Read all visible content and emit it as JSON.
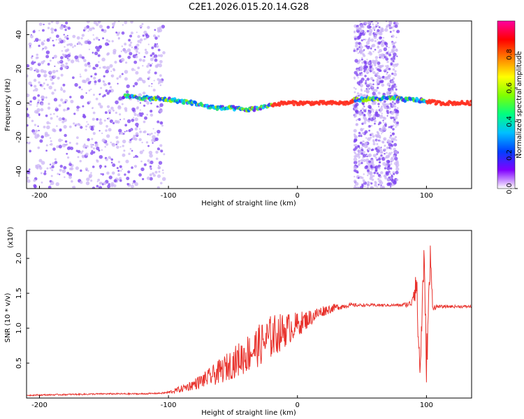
{
  "title": "C2E1.2026.015.20.14.G28",
  "colors": {
    "snr_line": "#e8312b",
    "spectrogram_scatter": "#7a3ff0",
    "spectrogram_background_scatter": "#cbb4f5",
    "axes": "#000000"
  },
  "chart_data": [
    {
      "type": "heatmap",
      "name": "spectrogram",
      "xlabel": "Height of straight line (km)",
      "ylabel": "Frequency (Hz)",
      "xlim": [
        -210,
        135
      ],
      "ylim": [
        -50,
        48
      ],
      "xticks": [
        -200,
        -100,
        0,
        100
      ],
      "yticks": [
        -40,
        -20,
        0,
        20,
        40
      ],
      "grid": false,
      "noise_regions_km": [
        [
          -210,
          -103
        ],
        [
          44,
          78
        ]
      ],
      "signal_track": {
        "x": [
          -135,
          -120,
          -100,
          -90,
          -80,
          -70,
          -60,
          -50,
          -40,
          -30,
          -20,
          -10,
          0,
          10,
          20,
          30,
          40,
          45,
          78,
          80,
          90,
          100,
          110,
          120,
          135
        ],
        "frequency_hz": [
          4,
          3,
          2,
          1,
          0,
          -2,
          -3,
          -3,
          -4,
          -3,
          -1,
          0,
          0,
          0,
          0,
          0,
          0,
          2,
          3,
          2,
          2,
          1,
          0,
          0,
          0
        ]
      },
      "colorbar": {
        "label": "Normalized spectral amplitude",
        "range": [
          0.0,
          1.0
        ],
        "ticks": [
          "0.0",
          "0.2",
          "0.4",
          "0.6",
          "0.8"
        ],
        "colormap": [
          "#ffffff",
          "#8000ff",
          "#0040ff",
          "#00c0ff",
          "#00ff80",
          "#80ff00",
          "#ffff00",
          "#ff8000",
          "#ff0000",
          "#ff00a0"
        ]
      }
    },
    {
      "type": "line",
      "name": "snr",
      "xlabel": "Height of straight line (km)",
      "ylabel": "SNR (10 * v/v)",
      "y_multiplier": "(x10⁴)",
      "xlim": [
        -210,
        135
      ],
      "ylim": [
        0,
        2.4
      ],
      "xticks": [
        -200,
        -100,
        0,
        100
      ],
      "yticks": [
        0.5,
        1.0,
        1.5,
        2.0
      ],
      "grid": false,
      "series": [
        {
          "x": [
            -210,
            -180,
            -150,
            -120,
            -105,
            -100,
            -90,
            -80,
            -70,
            -60,
            -50,
            -40,
            -30,
            -20,
            -10,
            0,
            10,
            20,
            30,
            40,
            50,
            60,
            70,
            80,
            88,
            92,
            95,
            98,
            100,
            103,
            105,
            110,
            120,
            135
          ],
          "values": [
            0.04,
            0.05,
            0.06,
            0.06,
            0.07,
            0.08,
            0.13,
            0.2,
            0.28,
            0.38,
            0.5,
            0.62,
            0.75,
            0.88,
            0.97,
            1.05,
            1.15,
            1.25,
            1.3,
            1.33,
            1.33,
            1.33,
            1.33,
            1.33,
            1.35,
            1.7,
            0.35,
            2.0,
            0.5,
            1.95,
            1.3,
            1.31,
            1.31,
            1.31
          ],
          "spread": [
            0.01,
            0.01,
            0.01,
            0.01,
            0.01,
            0.02,
            0.05,
            0.08,
            0.12,
            0.18,
            0.22,
            0.28,
            0.3,
            0.32,
            0.25,
            0.18,
            0.12,
            0.08,
            0.05,
            0.03,
            0.02,
            0.02,
            0.02,
            0.02,
            0.05,
            0.3,
            0.3,
            0.3,
            0.3,
            0.3,
            0.05,
            0.02,
            0.02,
            0.02
          ]
        }
      ]
    }
  ]
}
